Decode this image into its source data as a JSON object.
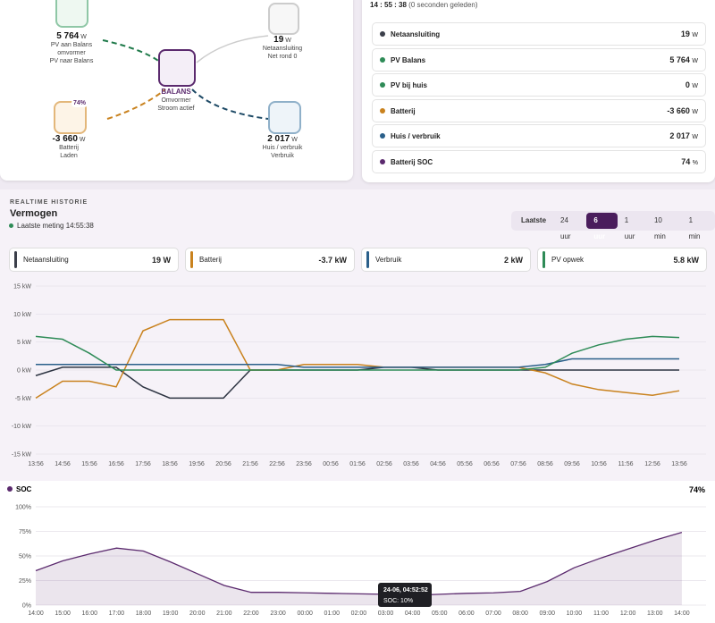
{
  "flow": {
    "nodes": [
      {
        "value": "5 764",
        "unit": "W",
        "label": "PV aan Balans",
        "label2": "omvormer",
        "sub": "PV naar Balans"
      },
      {
        "value": "19",
        "unit": "W",
        "label": "Netaansluiting",
        "sub": "Net rond 0"
      },
      {
        "value": "BALANS",
        "label": "Omvormer",
        "sub": "Stroom actief"
      },
      {
        "value": "-3 660",
        "unit": "W",
        "label": "Batterij",
        "sub": "Laden",
        "badge": "74%"
      },
      {
        "value": "2 017",
        "unit": "W",
        "label": "Huis / verbruik",
        "sub": "Verbruik"
      }
    ]
  },
  "status": {
    "title": "14 : 55 : 38",
    "ago": "(0 seconden geleden)",
    "rows": [
      {
        "label": "Netaansluiting",
        "value": "19",
        "unit": "W",
        "color": "#3b3f4a"
      },
      {
        "label": "PV Balans",
        "value": "5 764",
        "unit": "W",
        "color": "#2e8b57"
      },
      {
        "label": "PV bij huis",
        "value": "0",
        "unit": "W",
        "color": "#2e8b57"
      },
      {
        "label": "Batterij",
        "value": "-3 660",
        "unit": "W",
        "color": "#c9821e"
      },
      {
        "label": "Huis / verbruik",
        "value": "2 017",
        "unit": "W",
        "color": "#2a5f8a"
      },
      {
        "label": "Batterij SOC",
        "value": "74",
        "unit": "%",
        "color": "#5b2a6e"
      }
    ]
  },
  "history": {
    "kicker": "REALTIME HISTORIE",
    "title": "Vermogen",
    "last": "Laatste meting 14:55:38",
    "range_label": "Laatste",
    "ranges": [
      "24 uur",
      "6 uur",
      "1 uur",
      "10 min",
      "1 min"
    ],
    "active_range": 1,
    "cards": [
      {
        "label": "Netaansluiting",
        "value": "19 W",
        "color": "#3b3f4a"
      },
      {
        "label": "Batterij",
        "value": "-3.7 kW",
        "color": "#c9821e"
      },
      {
        "label": "Verbruik",
        "value": "2 kW",
        "color": "#2a5f8a"
      },
      {
        "label": "PV opwek",
        "value": "5.8 kW",
        "color": "#2e8b57"
      }
    ]
  },
  "chart_data": [
    {
      "type": "line",
      "x": [
        0,
        1,
        2,
        3,
        4,
        5,
        6,
        7,
        8,
        9,
        10,
        11,
        12,
        13,
        14,
        15,
        16,
        17,
        18,
        19,
        20,
        21,
        22,
        23,
        24
      ],
      "xlim": [
        0,
        25
      ],
      "ylim": [
        -15,
        15
      ],
      "grid": true,
      "yticks": [
        {
          "value": 15,
          "label": "15 kW"
        },
        {
          "value": 10,
          "label": "10 kW"
        },
        {
          "value": 5,
          "label": "5 kW"
        },
        {
          "value": 0,
          "label": "0 kW"
        },
        {
          "value": -5,
          "label": "-5 kW"
        },
        {
          "value": -10,
          "label": "-10 kW"
        },
        {
          "value": -15,
          "label": "-15 kW"
        }
      ],
      "xticks": [
        {
          "value": 0,
          "label": "13:56"
        },
        {
          "value": 1,
          "label": "14:56"
        },
        {
          "value": 2,
          "label": "15:56"
        },
        {
          "value": 3,
          "label": "16:56"
        },
        {
          "value": 4,
          "label": "17:56"
        },
        {
          "value": 5,
          "label": "18:56"
        },
        {
          "value": 6,
          "label": "19:56"
        },
        {
          "value": 7,
          "label": "20:56"
        },
        {
          "value": 8,
          "label": "21:56"
        },
        {
          "value": 9,
          "label": "22:56"
        },
        {
          "value": 10,
          "label": "23:56"
        },
        {
          "value": 11,
          "label": "00:56"
        },
        {
          "value": 12,
          "label": "01:56"
        },
        {
          "value": 13,
          "label": "02:56"
        },
        {
          "value": 14,
          "label": "03:56"
        },
        {
          "value": 15,
          "label": "04:56"
        },
        {
          "value": 16,
          "label": "05:56"
        },
        {
          "value": 17,
          "label": "06:56"
        },
        {
          "value": 18,
          "label": "07:56"
        },
        {
          "value": 19,
          "label": "08:56"
        },
        {
          "value": 20,
          "label": "09:56"
        },
        {
          "value": 21,
          "label": "10:56"
        },
        {
          "value": 22,
          "label": "11:56"
        },
        {
          "value": 23,
          "label": "12:56"
        },
        {
          "value": 24,
          "label": "13:56"
        }
      ],
      "series": [
        {
          "name": "Netaansluiting",
          "color": "#2d3442",
          "values": [
            -1,
            0.5,
            0.5,
            0.5,
            -3,
            -5,
            -5,
            -5,
            0,
            0,
            0,
            0,
            0,
            0.5,
            0.5,
            0,
            0,
            0,
            0,
            0,
            0,
            0,
            0,
            0,
            0
          ]
        },
        {
          "name": "Batterij",
          "color": "#c9821e",
          "values": [
            -5,
            -2,
            -2,
            -3,
            7,
            9,
            9,
            9,
            0,
            0,
            1,
            1,
            1,
            0.5,
            0.5,
            0.5,
            0.5,
            0.5,
            0.5,
            -0.5,
            -2.5,
            -3.5,
            -4,
            -4.5,
            -3.7
          ]
        },
        {
          "name": "Verbruik",
          "color": "#2a5f8a",
          "values": [
            1,
            1,
            1,
            1,
            1,
            1,
            1,
            1,
            1,
            1,
            0.5,
            0.5,
            0.5,
            0.5,
            0.5,
            0.5,
            0.5,
            0.5,
            0.5,
            1,
            2,
            2,
            2,
            2,
            2
          ]
        },
        {
          "name": "PV opwek",
          "color": "#2e8b57",
          "values": [
            6,
            5.5,
            3,
            0,
            0,
            0,
            0,
            0,
            0,
            0,
            0,
            0,
            0,
            0,
            0,
            0,
            0,
            0,
            0,
            0.5,
            3,
            4.5,
            5.5,
            6,
            5.8
          ]
        }
      ]
    },
    {
      "type": "area",
      "title": "SOC",
      "current": "74%",
      "x": [
        0,
        1,
        2,
        3,
        4,
        5,
        6,
        7,
        8,
        9,
        10,
        11,
        12,
        13,
        14,
        15,
        16,
        17,
        18,
        19,
        20,
        21,
        22,
        23,
        24
      ],
      "xlim": [
        0,
        24.9
      ],
      "ylim": [
        0,
        100
      ],
      "grid": true,
      "color": "#5b2a6e",
      "yticks": [
        {
          "value": 0,
          "label": "0%"
        },
        {
          "value": 25,
          "label": "25%"
        },
        {
          "value": 50,
          "label": "50%"
        },
        {
          "value": 75,
          "label": "75%"
        },
        {
          "value": 100,
          "label": "100%"
        }
      ],
      "xticks": [
        {
          "value": 0,
          "label": "14:00"
        },
        {
          "value": 1,
          "label": "15:00"
        },
        {
          "value": 2,
          "label": "16:00"
        },
        {
          "value": 3,
          "label": "17:00"
        },
        {
          "value": 4,
          "label": "18:00"
        },
        {
          "value": 5,
          "label": "19:00"
        },
        {
          "value": 6,
          "label": "20:00"
        },
        {
          "value": 7,
          "label": "21:00"
        },
        {
          "value": 8,
          "label": "22:00"
        },
        {
          "value": 9,
          "label": "23:00"
        },
        {
          "value": 10,
          "label": "00:00"
        },
        {
          "value": 11,
          "label": "01:00"
        },
        {
          "value": 12,
          "label": "02:00"
        },
        {
          "value": 13,
          "label": "03:00"
        },
        {
          "value": 14,
          "label": "04:00"
        },
        {
          "value": 15,
          "label": "05:00"
        },
        {
          "value": 16,
          "label": "06:00"
        },
        {
          "value": 17,
          "label": "07:00"
        },
        {
          "value": 18,
          "label": "08:00"
        },
        {
          "value": 19,
          "label": "09:00"
        },
        {
          "value": 20,
          "label": "10:00"
        },
        {
          "value": 21,
          "label": "11:00"
        },
        {
          "value": 22,
          "label": "12:00"
        },
        {
          "value": 23,
          "label": "13:00"
        },
        {
          "value": 24,
          "label": "14:00"
        }
      ],
      "values": [
        35,
        45,
        52,
        58,
        55,
        44,
        32,
        20,
        13,
        13,
        12.5,
        12,
        11.5,
        11,
        10,
        11,
        12,
        12.5,
        14,
        24,
        38,
        48,
        57,
        66,
        74
      ],
      "tooltip": {
        "title": "24-06, 04:52:52",
        "text": "SOC: 10%"
      }
    }
  ]
}
